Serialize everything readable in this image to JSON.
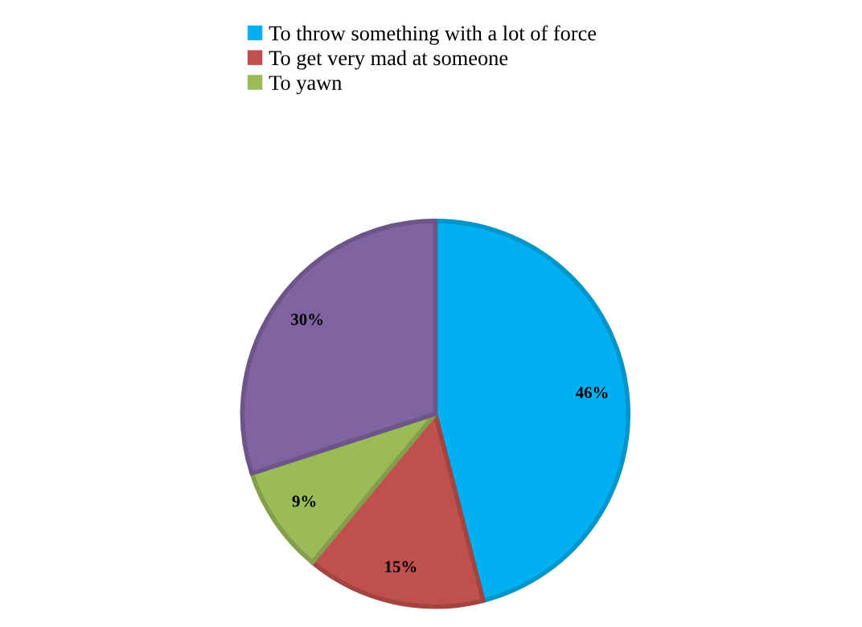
{
  "chart_data": {
    "type": "pie",
    "categories": [
      "To throw something with a lot of force",
      "To get very mad at someone",
      "To yawn",
      null
    ],
    "values": [
      46,
      15,
      9,
      30
    ],
    "colors": [
      "#00b0f0",
      "#c0504d",
      "#9bbb59",
      "#8064a2"
    ],
    "value_labels": [
      "46%",
      "15%",
      "9%",
      "30%"
    ],
    "legend": "top"
  }
}
